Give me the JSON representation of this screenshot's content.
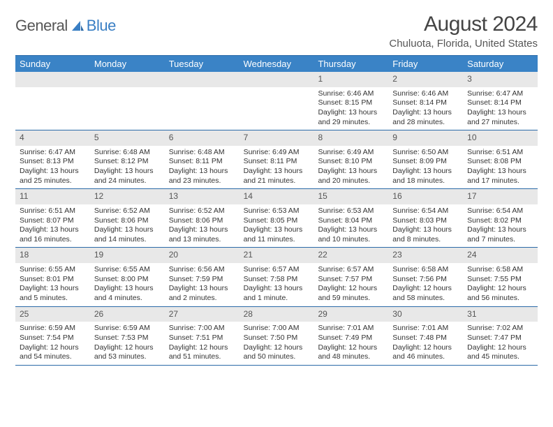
{
  "logo": {
    "part1": "General",
    "part2": "Blue"
  },
  "title": "August 2024",
  "location": "Chuluota, Florida, United States",
  "colors": {
    "headerBg": "#3a83c6",
    "headerText": "#ffffff",
    "bandBg": "#e8e8e8",
    "ruleColor": "#2b6aa8",
    "logoBlue": "#3a7fc4"
  },
  "dayNames": [
    "Sunday",
    "Monday",
    "Tuesday",
    "Wednesday",
    "Thursday",
    "Friday",
    "Saturday"
  ],
  "weeks": [
    [
      {
        "blank": true
      },
      {
        "blank": true
      },
      {
        "blank": true
      },
      {
        "blank": true
      },
      {
        "n": "1",
        "sr": "Sunrise: 6:46 AM",
        "ss": "Sunset: 8:15 PM",
        "dl": "Daylight: 13 hours and 29 minutes."
      },
      {
        "n": "2",
        "sr": "Sunrise: 6:46 AM",
        "ss": "Sunset: 8:14 PM",
        "dl": "Daylight: 13 hours and 28 minutes."
      },
      {
        "n": "3",
        "sr": "Sunrise: 6:47 AM",
        "ss": "Sunset: 8:14 PM",
        "dl": "Daylight: 13 hours and 27 minutes."
      }
    ],
    [
      {
        "n": "4",
        "sr": "Sunrise: 6:47 AM",
        "ss": "Sunset: 8:13 PM",
        "dl": "Daylight: 13 hours and 25 minutes."
      },
      {
        "n": "5",
        "sr": "Sunrise: 6:48 AM",
        "ss": "Sunset: 8:12 PM",
        "dl": "Daylight: 13 hours and 24 minutes."
      },
      {
        "n": "6",
        "sr": "Sunrise: 6:48 AM",
        "ss": "Sunset: 8:11 PM",
        "dl": "Daylight: 13 hours and 23 minutes."
      },
      {
        "n": "7",
        "sr": "Sunrise: 6:49 AM",
        "ss": "Sunset: 8:11 PM",
        "dl": "Daylight: 13 hours and 21 minutes."
      },
      {
        "n": "8",
        "sr": "Sunrise: 6:49 AM",
        "ss": "Sunset: 8:10 PM",
        "dl": "Daylight: 13 hours and 20 minutes."
      },
      {
        "n": "9",
        "sr": "Sunrise: 6:50 AM",
        "ss": "Sunset: 8:09 PM",
        "dl": "Daylight: 13 hours and 18 minutes."
      },
      {
        "n": "10",
        "sr": "Sunrise: 6:51 AM",
        "ss": "Sunset: 8:08 PM",
        "dl": "Daylight: 13 hours and 17 minutes."
      }
    ],
    [
      {
        "n": "11",
        "sr": "Sunrise: 6:51 AM",
        "ss": "Sunset: 8:07 PM",
        "dl": "Daylight: 13 hours and 16 minutes."
      },
      {
        "n": "12",
        "sr": "Sunrise: 6:52 AM",
        "ss": "Sunset: 8:06 PM",
        "dl": "Daylight: 13 hours and 14 minutes."
      },
      {
        "n": "13",
        "sr": "Sunrise: 6:52 AM",
        "ss": "Sunset: 8:06 PM",
        "dl": "Daylight: 13 hours and 13 minutes."
      },
      {
        "n": "14",
        "sr": "Sunrise: 6:53 AM",
        "ss": "Sunset: 8:05 PM",
        "dl": "Daylight: 13 hours and 11 minutes."
      },
      {
        "n": "15",
        "sr": "Sunrise: 6:53 AM",
        "ss": "Sunset: 8:04 PM",
        "dl": "Daylight: 13 hours and 10 minutes."
      },
      {
        "n": "16",
        "sr": "Sunrise: 6:54 AM",
        "ss": "Sunset: 8:03 PM",
        "dl": "Daylight: 13 hours and 8 minutes."
      },
      {
        "n": "17",
        "sr": "Sunrise: 6:54 AM",
        "ss": "Sunset: 8:02 PM",
        "dl": "Daylight: 13 hours and 7 minutes."
      }
    ],
    [
      {
        "n": "18",
        "sr": "Sunrise: 6:55 AM",
        "ss": "Sunset: 8:01 PM",
        "dl": "Daylight: 13 hours and 5 minutes."
      },
      {
        "n": "19",
        "sr": "Sunrise: 6:55 AM",
        "ss": "Sunset: 8:00 PM",
        "dl": "Daylight: 13 hours and 4 minutes."
      },
      {
        "n": "20",
        "sr": "Sunrise: 6:56 AM",
        "ss": "Sunset: 7:59 PM",
        "dl": "Daylight: 13 hours and 2 minutes."
      },
      {
        "n": "21",
        "sr": "Sunrise: 6:57 AM",
        "ss": "Sunset: 7:58 PM",
        "dl": "Daylight: 13 hours and 1 minute."
      },
      {
        "n": "22",
        "sr": "Sunrise: 6:57 AM",
        "ss": "Sunset: 7:57 PM",
        "dl": "Daylight: 12 hours and 59 minutes."
      },
      {
        "n": "23",
        "sr": "Sunrise: 6:58 AM",
        "ss": "Sunset: 7:56 PM",
        "dl": "Daylight: 12 hours and 58 minutes."
      },
      {
        "n": "24",
        "sr": "Sunrise: 6:58 AM",
        "ss": "Sunset: 7:55 PM",
        "dl": "Daylight: 12 hours and 56 minutes."
      }
    ],
    [
      {
        "n": "25",
        "sr": "Sunrise: 6:59 AM",
        "ss": "Sunset: 7:54 PM",
        "dl": "Daylight: 12 hours and 54 minutes."
      },
      {
        "n": "26",
        "sr": "Sunrise: 6:59 AM",
        "ss": "Sunset: 7:53 PM",
        "dl": "Daylight: 12 hours and 53 minutes."
      },
      {
        "n": "27",
        "sr": "Sunrise: 7:00 AM",
        "ss": "Sunset: 7:51 PM",
        "dl": "Daylight: 12 hours and 51 minutes."
      },
      {
        "n": "28",
        "sr": "Sunrise: 7:00 AM",
        "ss": "Sunset: 7:50 PM",
        "dl": "Daylight: 12 hours and 50 minutes."
      },
      {
        "n": "29",
        "sr": "Sunrise: 7:01 AM",
        "ss": "Sunset: 7:49 PM",
        "dl": "Daylight: 12 hours and 48 minutes."
      },
      {
        "n": "30",
        "sr": "Sunrise: 7:01 AM",
        "ss": "Sunset: 7:48 PM",
        "dl": "Daylight: 12 hours and 46 minutes."
      },
      {
        "n": "31",
        "sr": "Sunrise: 7:02 AM",
        "ss": "Sunset: 7:47 PM",
        "dl": "Daylight: 12 hours and 45 minutes."
      }
    ]
  ]
}
